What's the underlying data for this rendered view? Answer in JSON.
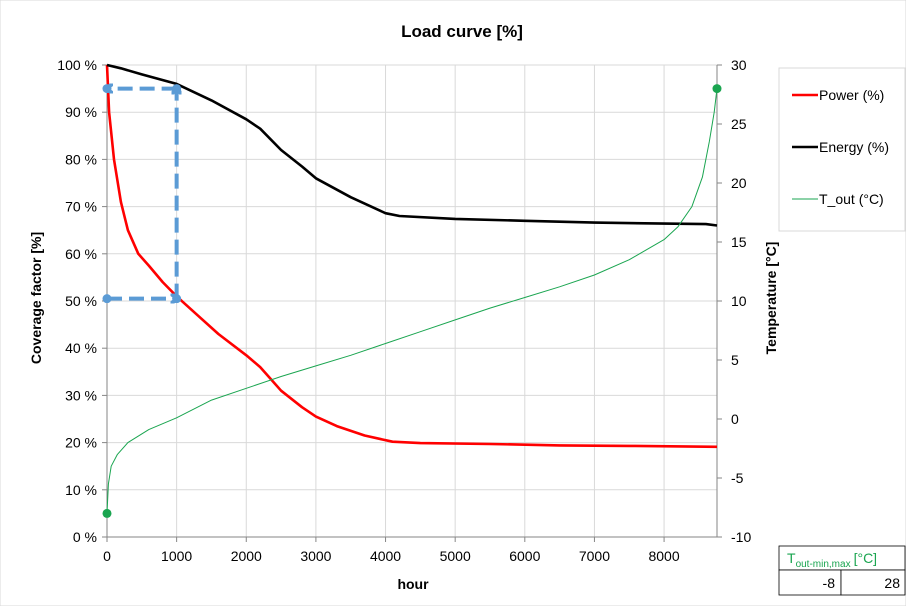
{
  "chart_data": {
    "type": "line",
    "title": "Load curve [%]",
    "xlabel": "hour",
    "ylabel": "Coverage factor [%]",
    "y2label": "Temperature [°C]",
    "xlim": [
      0,
      8760
    ],
    "ylim": [
      0,
      100
    ],
    "y2lim": [
      -10,
      30
    ],
    "x_ticks": [
      0,
      1000,
      2000,
      3000,
      4000,
      5000,
      6000,
      7000,
      8000
    ],
    "y_ticks": [
      "0 %",
      "10 %",
      "20 %",
      "30 %",
      "40 %",
      "50 %",
      "60 %",
      "70 %",
      "80 %",
      "90 %",
      "100 %"
    ],
    "y2_ticks": [
      "-10",
      "-5",
      "0",
      "5",
      "10",
      "15",
      "20",
      "25",
      "30"
    ],
    "grid": true,
    "legend_position": "right",
    "series": [
      {
        "name": "Power (%)",
        "axis": "left",
        "color": "#ff0000",
        "points": [
          [
            0,
            100
          ],
          [
            30,
            90
          ],
          [
            100,
            80
          ],
          [
            200,
            71
          ],
          [
            300,
            65
          ],
          [
            450,
            60
          ],
          [
            600,
            57.5
          ],
          [
            800,
            54
          ],
          [
            1000,
            51
          ],
          [
            1300,
            47
          ],
          [
            1600,
            43
          ],
          [
            2000,
            38.5
          ],
          [
            2200,
            36
          ],
          [
            2500,
            31
          ],
          [
            2800,
            27.5
          ],
          [
            3000,
            25.5
          ],
          [
            3300,
            23.5
          ],
          [
            3700,
            21.5
          ],
          [
            4100,
            20.2
          ],
          [
            4500,
            19.9
          ],
          [
            5500,
            19.7
          ],
          [
            6500,
            19.4
          ],
          [
            7500,
            19.3
          ],
          [
            8760,
            19.1
          ]
        ]
      },
      {
        "name": "Energy (%)",
        "axis": "left",
        "color": "#000000",
        "points": [
          [
            0,
            100
          ],
          [
            200,
            99.3
          ],
          [
            500,
            98
          ],
          [
            1000,
            96
          ],
          [
            1500,
            92.5
          ],
          [
            2000,
            88.5
          ],
          [
            2200,
            86.5
          ],
          [
            2500,
            82
          ],
          [
            2800,
            78.5
          ],
          [
            3000,
            76
          ],
          [
            3500,
            72
          ],
          [
            4000,
            68.6
          ],
          [
            4200,
            68
          ],
          [
            5000,
            67.4
          ],
          [
            6000,
            67
          ],
          [
            7000,
            66.6
          ],
          [
            8000,
            66.4
          ],
          [
            8600,
            66.3
          ],
          [
            8760,
            66
          ]
        ]
      },
      {
        "name": "T_out (°C)",
        "axis": "right",
        "color": "#1aa550",
        "points": [
          [
            0,
            -8
          ],
          [
            20,
            -5.5
          ],
          [
            60,
            -4
          ],
          [
            150,
            -3
          ],
          [
            300,
            -2
          ],
          [
            600,
            -0.9
          ],
          [
            1000,
            0.1
          ],
          [
            1500,
            1.6
          ],
          [
            2000,
            2.6
          ],
          [
            2500,
            3.6
          ],
          [
            3000,
            4.5
          ],
          [
            3500,
            5.4
          ],
          [
            4000,
            6.4
          ],
          [
            4500,
            7.4
          ],
          [
            5000,
            8.4
          ],
          [
            5500,
            9.4
          ],
          [
            6000,
            10.3
          ],
          [
            6500,
            11.2
          ],
          [
            7000,
            12.2
          ],
          [
            7500,
            13.5
          ],
          [
            8000,
            15.2
          ],
          [
            8200,
            16.3
          ],
          [
            8400,
            18
          ],
          [
            8550,
            20.5
          ],
          [
            8650,
            23.5
          ],
          [
            8720,
            26
          ],
          [
            8760,
            28
          ]
        ]
      }
    ],
    "markers": [
      {
        "axis": "right",
        "x": 0,
        "y": -8,
        "color": "#1aa550"
      },
      {
        "axis": "right",
        "x": 8760,
        "y": 28,
        "color": "#1aa550"
      },
      {
        "axis": "left",
        "x": 0,
        "y": 95,
        "color": "#5b9bd5"
      },
      {
        "axis": "left",
        "x": 1000,
        "y": 95,
        "color": "#5b9bd5"
      },
      {
        "axis": "left",
        "x": 0,
        "y": 50.5,
        "color": "#5b9bd5"
      },
      {
        "axis": "left",
        "x": 1000,
        "y": 50.5,
        "color": "#5b9bd5"
      }
    ],
    "annotation_arrows": [
      {
        "from": [
          0,
          50.5
        ],
        "to": [
          1000,
          50.5
        ]
      },
      {
        "from": [
          1000,
          50.5
        ],
        "to": [
          1000,
          95
        ]
      },
      {
        "from": [
          1000,
          95
        ],
        "to": [
          0,
          95
        ]
      }
    ]
  },
  "table": {
    "label_main": "T",
    "label_sub": "out-min,max",
    "label_unit": "[°C]",
    "min_value": "-8",
    "max_value": "28",
    "label_color": "#1aa550"
  }
}
